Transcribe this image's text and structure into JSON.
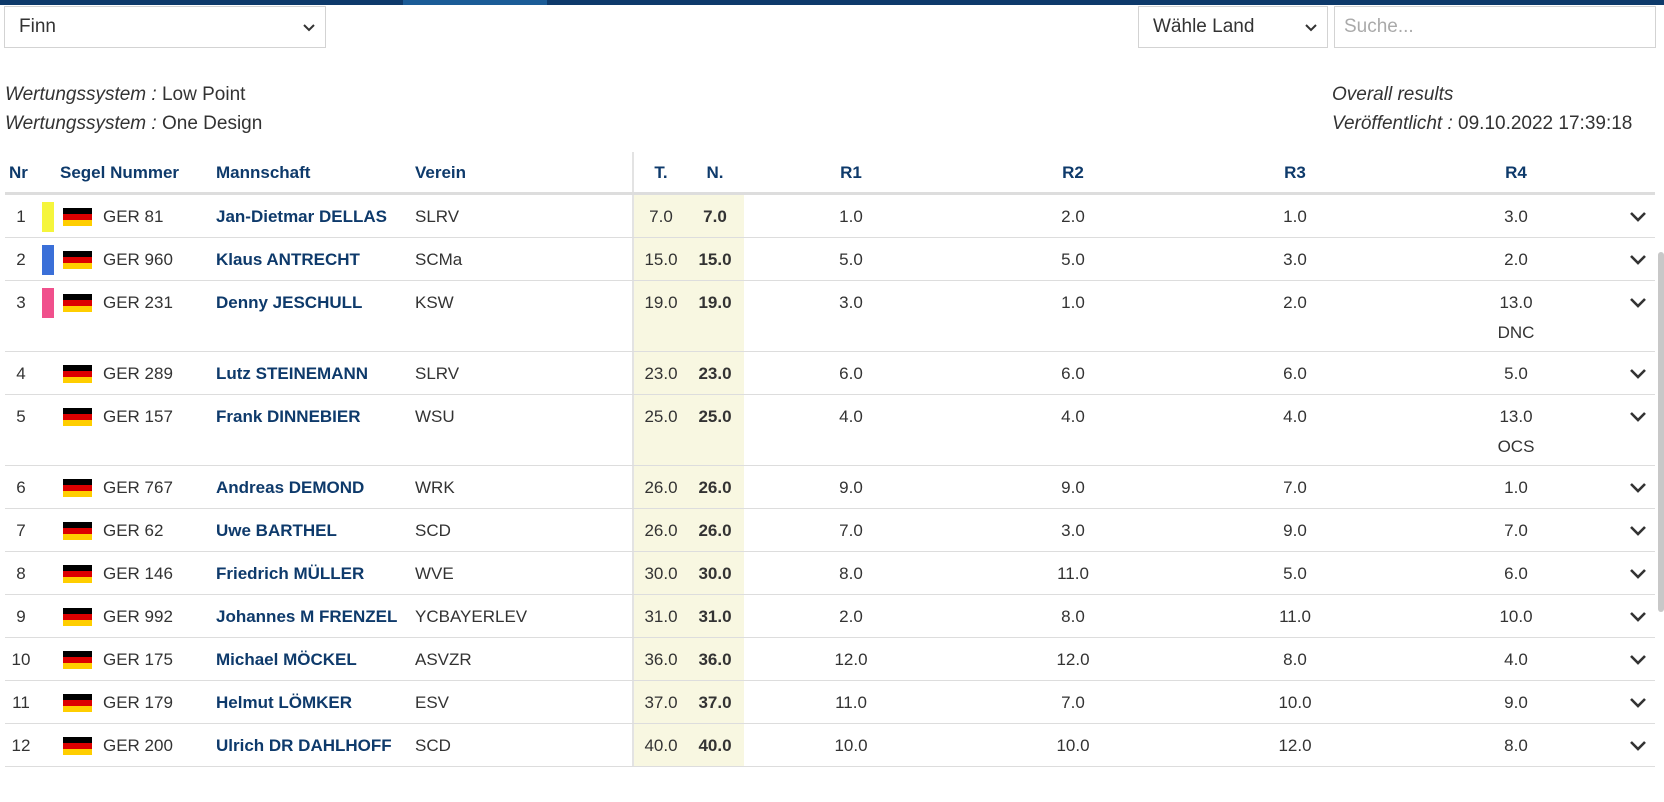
{
  "filters": {
    "class_value": "Finn",
    "country_value": "Wähle Land",
    "search_placeholder": "Suche..."
  },
  "meta": {
    "scoring_label_1": "Wertungssystem :",
    "scoring_value_1": "Low Point",
    "scoring_label_2": "Wertungssystem :",
    "scoring_value_2": "One Design",
    "results_title": "Overall results",
    "published_label": "Veröffentlicht :",
    "published_value": "09.10.2022 17:39:18"
  },
  "columns": {
    "rank": "Nr",
    "sail": "Segel Nummer",
    "team": "Mannschaft",
    "club": "Verein",
    "total": "T.",
    "net": "N.",
    "r1": "R1",
    "r2": "R2",
    "r3": "R3",
    "r4": "R4"
  },
  "colors": {
    "primary": "#0e3a6b",
    "medal_gold": "#f5f53c",
    "medal_silver": "#3a6fd8",
    "medal_bronze": "#f0508c",
    "score_shade": "#f8f7e1"
  },
  "rows": [
    {
      "rank": "1",
      "sail": "GER 81",
      "team": "Jan-Dietmar DELLAS",
      "club": "SLRV",
      "total": "7.0",
      "net": "7.0",
      "r1": "1.0",
      "r2": "2.0",
      "r3": "1.0",
      "r4": "3.0",
      "r4_code": "",
      "medal": "medal_gold",
      "flag": "germany-flag-icon"
    },
    {
      "rank": "2",
      "sail": "GER 960",
      "team": "Klaus ANTRECHT",
      "club": "SCMa",
      "total": "15.0",
      "net": "15.0",
      "r1": "5.0",
      "r2": "5.0",
      "r3": "3.0",
      "r4": "2.0",
      "r4_code": "",
      "medal": "medal_silver",
      "flag": "germany-flag-icon"
    },
    {
      "rank": "3",
      "sail": "GER 231",
      "team": "Denny JESCHULL",
      "club": "KSW",
      "total": "19.0",
      "net": "19.0",
      "r1": "3.0",
      "r2": "1.0",
      "r3": "2.0",
      "r4": "13.0",
      "r4_code": "DNC",
      "medal": "medal_bronze",
      "flag": "germany-flag-icon"
    },
    {
      "rank": "4",
      "sail": "GER 289",
      "team": "Lutz STEINEMANN",
      "club": "SLRV",
      "total": "23.0",
      "net": "23.0",
      "r1": "6.0",
      "r2": "6.0",
      "r3": "6.0",
      "r4": "5.0",
      "r4_code": "",
      "medal": "",
      "flag": "germany-flag-icon"
    },
    {
      "rank": "5",
      "sail": "GER 157",
      "team": "Frank DINNEBIER",
      "club": "WSU",
      "total": "25.0",
      "net": "25.0",
      "r1": "4.0",
      "r2": "4.0",
      "r3": "4.0",
      "r4": "13.0",
      "r4_code": "OCS",
      "medal": "",
      "flag": "germany-flag-icon"
    },
    {
      "rank": "6",
      "sail": "GER 767",
      "team": "Andreas DEMOND",
      "club": "WRK",
      "total": "26.0",
      "net": "26.0",
      "r1": "9.0",
      "r2": "9.0",
      "r3": "7.0",
      "r4": "1.0",
      "r4_code": "",
      "medal": "",
      "flag": "germany-flag-icon"
    },
    {
      "rank": "7",
      "sail": "GER 62",
      "team": "Uwe BARTHEL",
      "club": "SCD",
      "total": "26.0",
      "net": "26.0",
      "r1": "7.0",
      "r2": "3.0",
      "r3": "9.0",
      "r4": "7.0",
      "r4_code": "",
      "medal": "",
      "flag": "germany-flag-icon"
    },
    {
      "rank": "8",
      "sail": "GER 146",
      "team": "Friedrich MÜLLER",
      "club": "WVE",
      "total": "30.0",
      "net": "30.0",
      "r1": "8.0",
      "r2": "11.0",
      "r3": "5.0",
      "r4": "6.0",
      "r4_code": "",
      "medal": "",
      "flag": "germany-flag-icon"
    },
    {
      "rank": "9",
      "sail": "GER 992",
      "team": "Johannes M FRENZEL",
      "club": "YCBAYERLEV",
      "total": "31.0",
      "net": "31.0",
      "r1": "2.0",
      "r2": "8.0",
      "r3": "11.0",
      "r4": "10.0",
      "r4_code": "",
      "medal": "",
      "flag": "germany-flag-icon"
    },
    {
      "rank": "10",
      "sail": "GER 175",
      "team": "Michael MÖCKEL",
      "club": "ASVZR",
      "total": "36.0",
      "net": "36.0",
      "r1": "12.0",
      "r2": "12.0",
      "r3": "8.0",
      "r4": "4.0",
      "r4_code": "",
      "medal": "",
      "flag": "germany-flag-icon"
    },
    {
      "rank": "11",
      "sail": "GER 179",
      "team": "Helmut LÖMKER",
      "club": "ESV",
      "total": "37.0",
      "net": "37.0",
      "r1": "11.0",
      "r2": "7.0",
      "r3": "10.0",
      "r4": "9.0",
      "r4_code": "",
      "medal": "",
      "flag": "germany-flag-icon"
    },
    {
      "rank": "12",
      "sail": "GER 200",
      "team": "Ulrich DR DAHLHOFF",
      "club": "SCD",
      "total": "40.0",
      "net": "40.0",
      "r1": "10.0",
      "r2": "10.0",
      "r3": "12.0",
      "r4": "8.0",
      "r4_code": "",
      "medal": "",
      "flag": "germany-flag-icon"
    }
  ]
}
